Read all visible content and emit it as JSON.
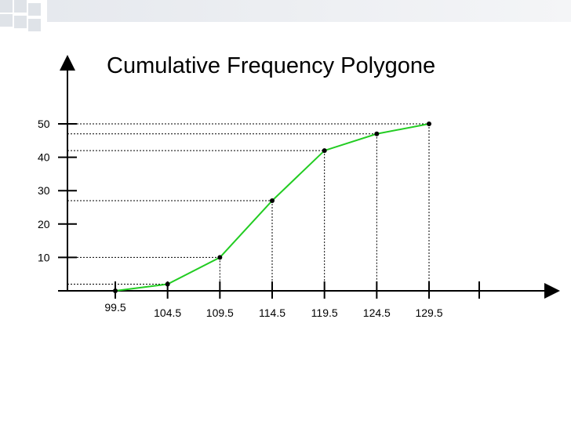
{
  "chart_data": {
    "type": "line",
    "title": "Cumulative Frequency Polygone",
    "xlabel": "",
    "ylabel": "",
    "x_ticks": [
      "99.5",
      "104.5",
      "109.5",
      "114.5",
      "119.5",
      "124.5",
      "129.5"
    ],
    "y_ticks": [
      "10",
      "20",
      "30",
      "40",
      "50"
    ],
    "ylim": [
      0,
      50
    ],
    "xlim": [
      99.5,
      129.5
    ],
    "grid": false,
    "series": [
      {
        "x": [
          99.5,
          104.5,
          109.5,
          114.5,
          119.5,
          124.5,
          129.5
        ],
        "values": [
          0,
          2,
          10,
          27,
          42,
          47,
          50
        ],
        "color": "#22cc22"
      }
    ]
  }
}
